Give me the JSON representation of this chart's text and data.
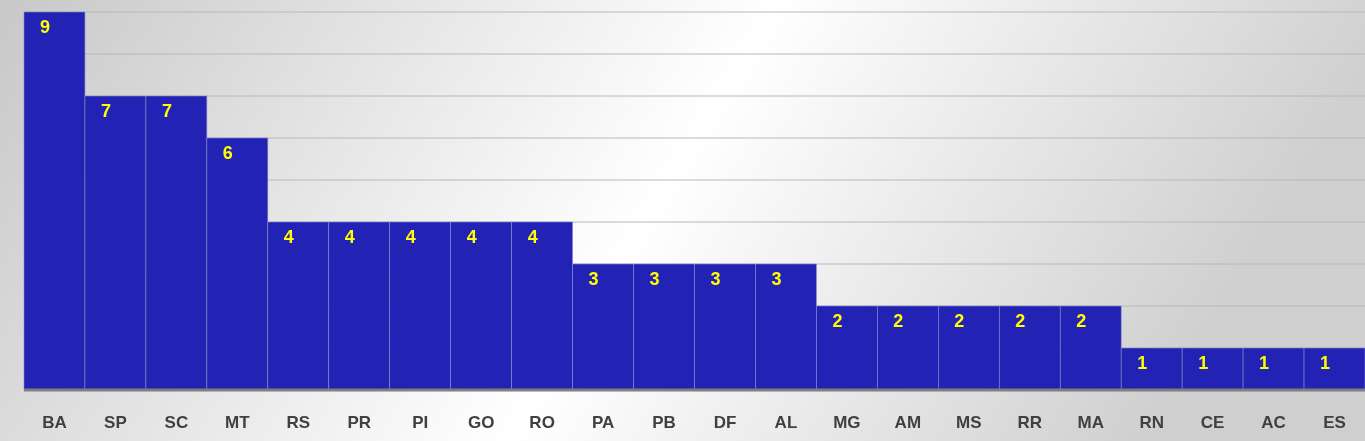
{
  "chart_data": {
    "type": "bar",
    "categories": [
      "BA",
      "SP",
      "SC",
      "MT",
      "RS",
      "PR",
      "PI",
      "GO",
      "RO",
      "PA",
      "PB",
      "DF",
      "AL",
      "MG",
      "AM",
      "MS",
      "RR",
      "MA",
      "RN",
      "CE",
      "AC",
      "ES"
    ],
    "values": [
      9,
      7,
      7,
      6,
      4,
      4,
      4,
      4,
      4,
      3,
      3,
      3,
      3,
      2,
      2,
      2,
      2,
      2,
      1,
      1,
      1,
      1
    ],
    "color": "#2222b4",
    "ylim": [
      0,
      9
    ],
    "yticks": [
      {
        "value": 0,
        "label": null
      },
      {
        "value": 1,
        "label": null
      },
      {
        "value": 2,
        "label": null
      },
      {
        "value": 3,
        "label": null
      },
      {
        "value": 4,
        "label": null
      },
      {
        "value": 5,
        "label": null
      },
      {
        "value": 6,
        "label": null
      },
      {
        "value": 7,
        "label": null
      },
      {
        "value": 8,
        "label": null
      },
      {
        "value": 9,
        "label": null
      }
    ],
    "grid": "y",
    "tick_labels": "x",
    "data_labels": true
  }
}
